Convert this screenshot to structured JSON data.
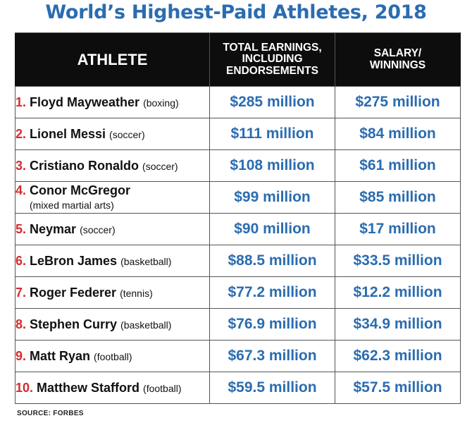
{
  "chart_data": {
    "type": "table",
    "title": "World’s Highest-Paid Athletes, 2018",
    "columns": {
      "athlete": "ATHLETE",
      "earnings_lines": [
        "TOTAL EARNINGS,",
        "INCLUDING",
        "ENDORSEMENTS"
      ],
      "salary_lines": [
        "SALARY/",
        "WINNINGS"
      ]
    },
    "rows": [
      {
        "rank": "1.",
        "name": "Floyd Mayweather",
        "sport": "(boxing)",
        "earnings": "$285 million",
        "salary": "$275 million",
        "earnings_value": 285,
        "salary_value": 275
      },
      {
        "rank": "2.",
        "name": "Lionel Messi",
        "sport": "(soccer)",
        "earnings": "$111 million",
        "salary": "$84 million",
        "earnings_value": 111,
        "salary_value": 84
      },
      {
        "rank": "3.",
        "name": "Cristiano Ronaldo",
        "sport": "(soccer)",
        "earnings": "$108 million",
        "salary": "$61 million",
        "earnings_value": 108,
        "salary_value": 61
      },
      {
        "rank": "4.",
        "name": "Conor McGregor",
        "sport": "(mixed martial arts)",
        "earnings": "$99 million",
        "salary": "$85 million",
        "earnings_value": 99,
        "salary_value": 85
      },
      {
        "rank": "5.",
        "name": "Neymar",
        "sport": "(soccer)",
        "earnings": "$90 million",
        "salary": "$17 million",
        "earnings_value": 90,
        "salary_value": 17
      },
      {
        "rank": "6.",
        "name": "LeBron James",
        "sport": "(basketball)",
        "earnings": "$88.5 million",
        "salary": "$33.5 million",
        "earnings_value": 88.5,
        "salary_value": 33.5
      },
      {
        "rank": "7.",
        "name": "Roger Federer",
        "sport": "(tennis)",
        "earnings": "$77.2 million",
        "salary": "$12.2 million",
        "earnings_value": 77.2,
        "salary_value": 12.2
      },
      {
        "rank": "8.",
        "name": "Stephen Curry",
        "sport": "(basketball)",
        "earnings": "$76.9 million",
        "salary": "$34.9 million",
        "earnings_value": 76.9,
        "salary_value": 34.9
      },
      {
        "rank": "9.",
        "name": "Matt Ryan",
        "sport": "(football)",
        "earnings": "$67.3 million",
        "salary": "$62.3 million",
        "earnings_value": 67.3,
        "salary_value": 62.3
      },
      {
        "rank": "10.",
        "name": "Matthew Stafford",
        "sport": "(football)",
        "earnings": "$59.5 million",
        "salary": "$57.5 million",
        "earnings_value": 59.5,
        "salary_value": 57.5
      }
    ],
    "source": "SOURCE: FORBES"
  },
  "colors": {
    "title": "#2b6cb0",
    "money": "#2b6cb0",
    "rank": "#d42c2c",
    "header_bg": "#0d0d0d"
  }
}
